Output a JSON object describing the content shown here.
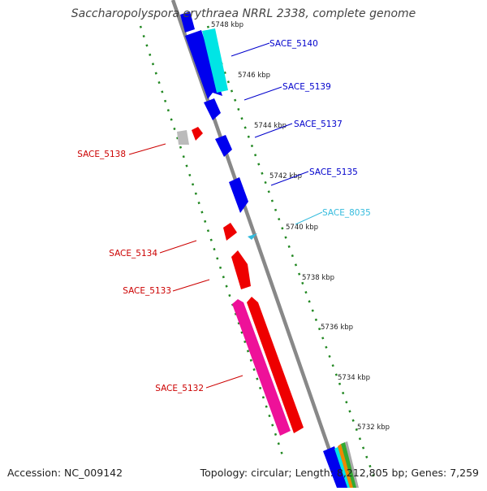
{
  "title": "Saccharopolyspora erythraea NRRL 2338, complete genome",
  "footer": {
    "accession": "Accession: NC_009142",
    "topology": "Topology: circular; Length: 8,212,805 bp; Genes: 7,259"
  },
  "ticks": [
    "5748 kbp",
    "5746 kbp",
    "5744 kbp",
    "5742 kbp",
    "5740 kbp",
    "5738 kbp",
    "5736 kbp",
    "5734 kbp",
    "5732 kbp"
  ],
  "genes": [
    {
      "label": "SACE_5140",
      "color": "#0000cc"
    },
    {
      "label": "SACE_5139",
      "color": "#0000cc"
    },
    {
      "label": "SACE_5137",
      "color": "#0000cc"
    },
    {
      "label": "SACE_5138",
      "color": "#cc0000"
    },
    {
      "label": "SACE_5135",
      "color": "#0000cc"
    },
    {
      "label": "SACE_8035",
      "color": "#33bbdd"
    },
    {
      "label": "SACE_5134",
      "color": "#cc0000"
    },
    {
      "label": "SACE_5133",
      "color": "#cc0000"
    },
    {
      "label": "SACE_5132",
      "color": "#cc0000"
    }
  ],
  "colors": {
    "forward_strand": "#0000ee",
    "reverse_strand": "#ee0000",
    "cyan_feature": "#00e5e5",
    "pink_feature": "#ee1199",
    "grey_feature": "#bbbbbb",
    "backbone": "#888888",
    "dotted_guides": "#228822"
  }
}
